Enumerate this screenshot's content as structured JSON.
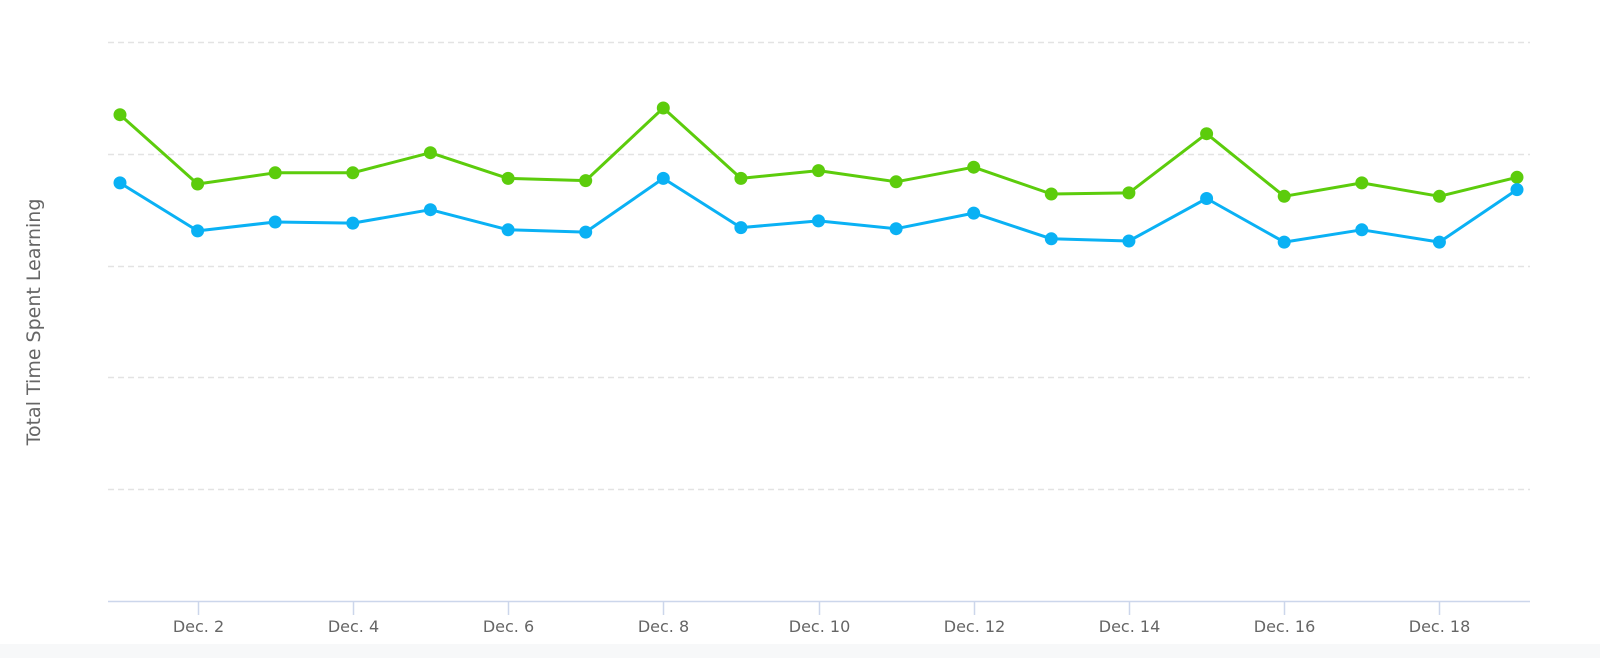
{
  "chart_data": {
    "type": "line",
    "title": "",
    "xlabel": "",
    "ylabel": "Total Time Spent Learning",
    "x": [
      "Dec. 1",
      "Dec. 2",
      "Dec. 3",
      "Dec. 4",
      "Dec. 5",
      "Dec. 6",
      "Dec. 7",
      "Dec. 8",
      "Dec. 9",
      "Dec. 10",
      "Dec. 11",
      "Dec. 12",
      "Dec. 13",
      "Dec. 14",
      "Dec. 15",
      "Dec. 16",
      "Dec. 17",
      "Dec. 18",
      "Dec. 19"
    ],
    "x_tick_labels": [
      "Dec. 2",
      "Dec. 4",
      "Dec. 6",
      "Dec. 8",
      "Dec. 10",
      "Dec. 12",
      "Dec. 14",
      "Dec. 16",
      "Dec. 18"
    ],
    "ylim": [
      0,
      5
    ],
    "y_gridlines": [
      1,
      2,
      3,
      4,
      5
    ],
    "y_tick_labels_visible": false,
    "grid": true,
    "legend": "none",
    "series": [
      {
        "color": "#5ccc0c",
        "values": [
          4.35,
          3.73,
          3.83,
          3.83,
          4.01,
          3.78,
          3.76,
          4.41,
          3.78,
          3.85,
          3.75,
          3.88,
          3.64,
          3.65,
          4.18,
          3.62,
          3.74,
          3.62,
          3.79
        ]
      },
      {
        "color": "#0ab1f4",
        "values": [
          3.74,
          3.31,
          3.39,
          3.38,
          3.5,
          3.32,
          3.3,
          3.78,
          3.34,
          3.4,
          3.33,
          3.47,
          3.24,
          3.22,
          3.6,
          3.21,
          3.32,
          3.21,
          3.68
        ]
      }
    ],
    "colors": {
      "grid": "#e3e3e3",
      "axis": "#ccd6eb",
      "text": "#666666"
    }
  }
}
